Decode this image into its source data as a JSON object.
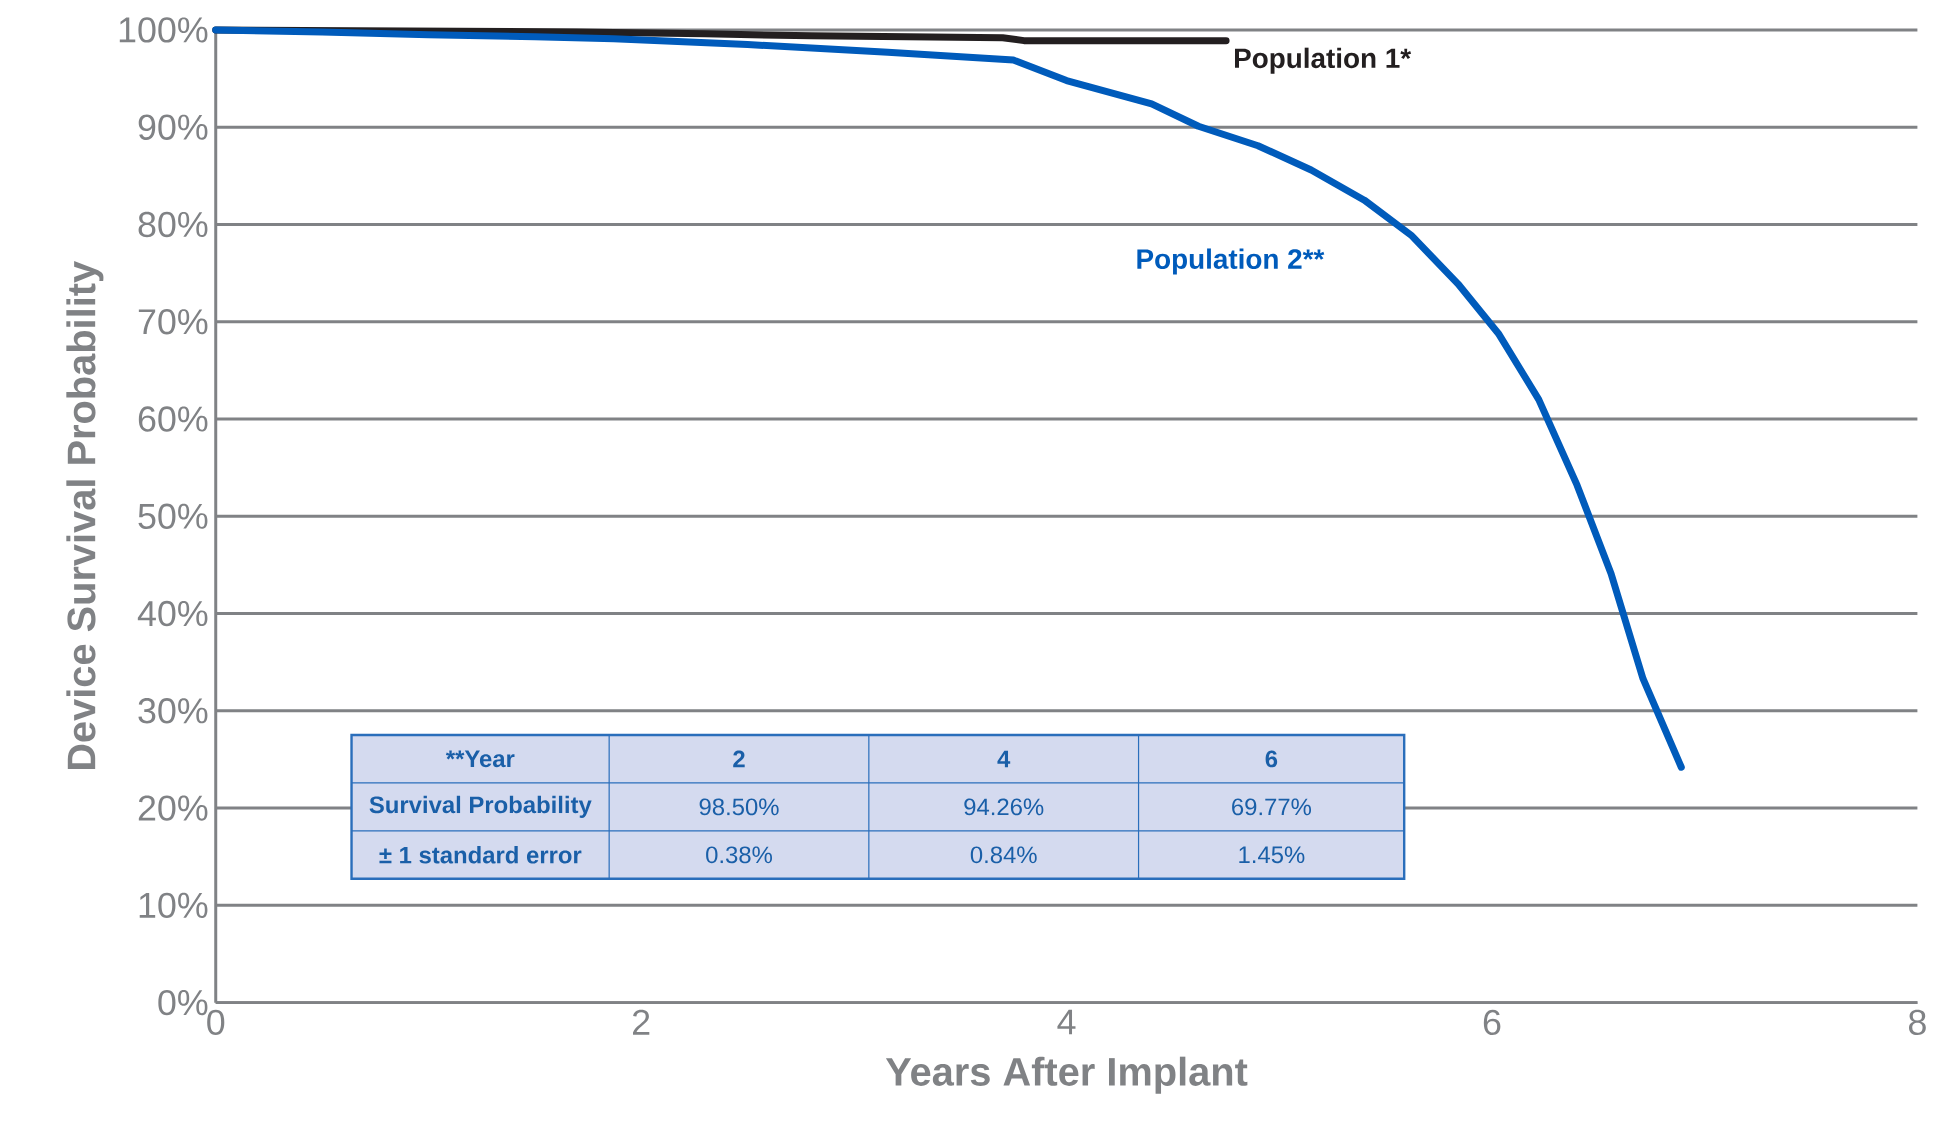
{
  "chart_data": {
    "type": "line",
    "xlabel": "Years After Implant",
    "ylabel": "Device Survival Probability",
    "xlim": [
      0,
      8
    ],
    "xticks": [
      0,
      2,
      4,
      6,
      8
    ],
    "ylim": [
      0,
      100
    ],
    "yticks": [
      {
        "value": 0,
        "label": "0%"
      },
      {
        "value": 10,
        "label": "10%"
      },
      {
        "value": 20,
        "label": "20%"
      },
      {
        "value": 30,
        "label": "30%"
      },
      {
        "value": 40,
        "label": "40%"
      },
      {
        "value": 50,
        "label": "50%"
      },
      {
        "value": 60,
        "label": "60%"
      },
      {
        "value": 70,
        "label": "70%"
      },
      {
        "value": 80,
        "label": "80%"
      },
      {
        "value": 90,
        "label": "90%"
      },
      {
        "value": 100,
        "label": "100%"
      }
    ],
    "grid": "y",
    "series": [
      {
        "name": "Population 1*",
        "color": "#231f20",
        "x": [
          0,
          1.7,
          2.3,
          2.8,
          3.7,
          3.8,
          4.75
        ],
        "values": [
          100,
          99.8,
          99.6,
          99.4,
          99.2,
          98.9,
          98.9
        ]
      },
      {
        "name": "Population 2**",
        "color": "#005bbb",
        "x": [
          0,
          0.5,
          1,
          1.5,
          1.87,
          2.5,
          3.16,
          3.75,
          4.0,
          4.4,
          4.62,
          4.9,
          5.15,
          5.4,
          5.62,
          5.84,
          6.03,
          6.22,
          6.4,
          6.56,
          6.71,
          6.89
        ],
        "values": [
          100,
          99.8,
          99.5,
          99.3,
          99.1,
          98.5,
          97.7,
          96.9,
          94.8,
          92.4,
          90.1,
          88.1,
          85.6,
          82.5,
          78.9,
          73.9,
          68.8,
          62.0,
          53.2,
          44.1,
          33.3,
          24.2
        ]
      }
    ],
    "annotations": [
      "**Year",
      "2",
      "4",
      "6",
      "Survival Probability",
      "98.50%",
      "94.26%",
      "69.77%",
      "± 1 standard error",
      "0.38%",
      "0.84%",
      "1.45%"
    ]
  }
}
